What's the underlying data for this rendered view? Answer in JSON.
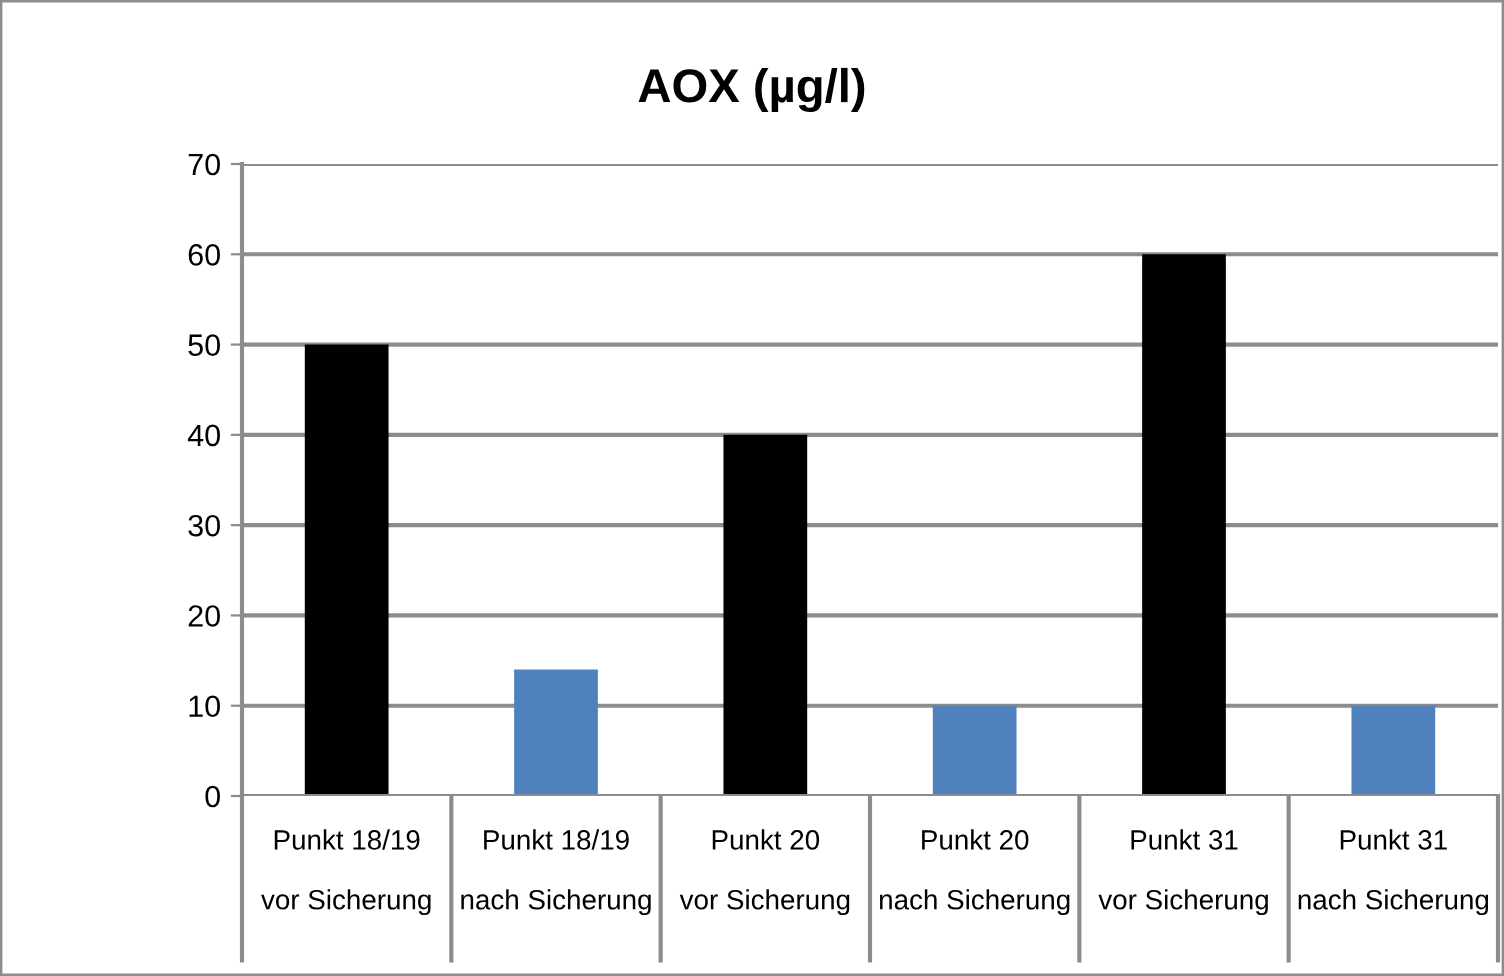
{
  "chart_data": {
    "type": "bar",
    "title": "AOX (µg/l)",
    "categories": [
      "Punkt 18/19\n\nvor Sicherung",
      "Punkt 18/19\n\nnach Sicherung",
      "Punkt 20\n\nvor Sicherung",
      "Punkt 20\n\nnach Sicherung",
      "Punkt 31\n\nvor Sicherung",
      "Punkt 31\n\nnach Sicherung"
    ],
    "values": [
      50,
      14,
      40,
      10,
      60,
      10
    ],
    "colors": [
      "#000000",
      "#4f81bd",
      "#000000",
      "#4f81bd",
      "#000000",
      "#4f81bd"
    ],
    "ylim": [
      0,
      70
    ],
    "yticks": [
      0,
      10,
      20,
      30,
      40,
      50,
      60,
      70
    ],
    "grid": "y",
    "legend": false
  }
}
